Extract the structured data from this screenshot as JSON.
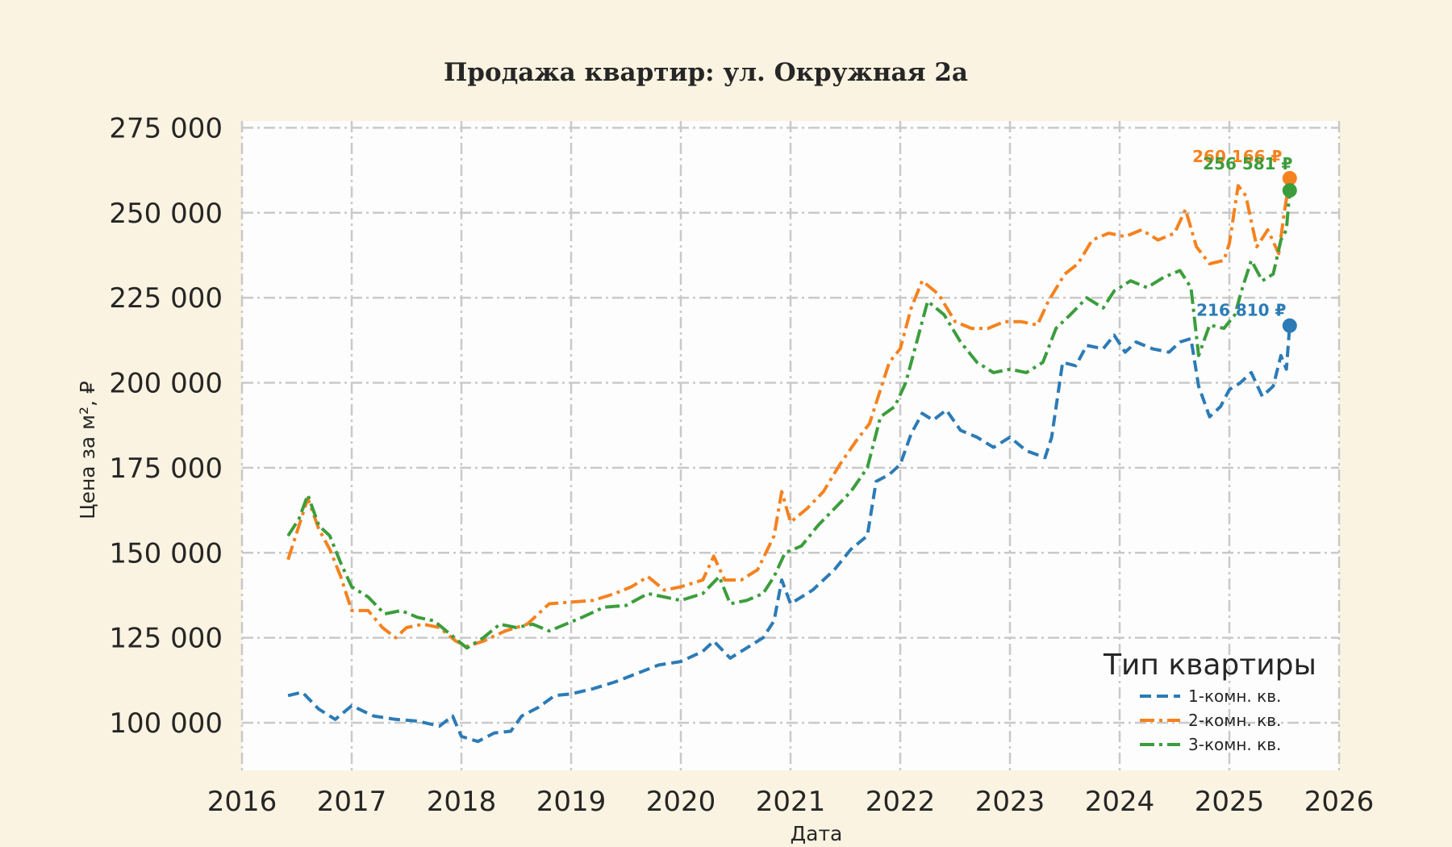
{
  "chart_data": {
    "type": "line",
    "title": "Продажа квартир: ул. Окружная 2а",
    "xlabel": "Дата",
    "ylabel": "Цена за м², ₽",
    "xlim": [
      2016.0,
      2026.0
    ],
    "ylim": [
      86000,
      277000
    ],
    "x_ticks": [
      2016,
      2017,
      2018,
      2019,
      2020,
      2021,
      2022,
      2023,
      2024,
      2025,
      2026
    ],
    "x_tick_labels": [
      "2016",
      "2017",
      "2018",
      "2019",
      "2020",
      "2021",
      "2022",
      "2023",
      "2024",
      "2025",
      "2026"
    ],
    "y_ticks": [
      100000,
      125000,
      150000,
      175000,
      200000,
      225000,
      250000,
      275000
    ],
    "y_tick_labels": [
      "100 000",
      "125 000",
      "150 000",
      "175 000",
      "200 000",
      "225 000",
      "250 000",
      "275 000"
    ],
    "grid": true,
    "legend": {
      "title": "Тип квартиры",
      "placement": "bottom-right"
    },
    "series": [
      {
        "name": "1-комн. кв.",
        "color": "#2c7bb6",
        "dash": "dashed",
        "end_label": "216 810 ₽",
        "end_point": [
          2025.55,
          216810
        ],
        "points": [
          [
            2016.42,
            108000
          ],
          [
            2016.55,
            109000
          ],
          [
            2016.7,
            104000
          ],
          [
            2016.85,
            101000
          ],
          [
            2017.0,
            105000
          ],
          [
            2017.2,
            102000
          ],
          [
            2017.4,
            101000
          ],
          [
            2017.6,
            100500
          ],
          [
            2017.8,
            99000
          ],
          [
            2017.92,
            102000
          ],
          [
            2018.0,
            96000
          ],
          [
            2018.15,
            94500
          ],
          [
            2018.3,
            97000
          ],
          [
            2018.45,
            97500
          ],
          [
            2018.55,
            102000
          ],
          [
            2018.7,
            104500
          ],
          [
            2018.85,
            108000
          ],
          [
            2019.0,
            108500
          ],
          [
            2019.2,
            110000
          ],
          [
            2019.4,
            112000
          ],
          [
            2019.6,
            114500
          ],
          [
            2019.8,
            117000
          ],
          [
            2020.0,
            118000
          ],
          [
            2020.2,
            121000
          ],
          [
            2020.3,
            124000
          ],
          [
            2020.45,
            119000
          ],
          [
            2020.6,
            122000
          ],
          [
            2020.75,
            125000
          ],
          [
            2020.85,
            130000
          ],
          [
            2020.92,
            142000
          ],
          [
            2021.0,
            135000
          ],
          [
            2021.2,
            139000
          ],
          [
            2021.4,
            145000
          ],
          [
            2021.55,
            151000
          ],
          [
            2021.7,
            155000
          ],
          [
            2021.78,
            171000
          ],
          [
            2021.9,
            173000
          ],
          [
            2022.0,
            176000
          ],
          [
            2022.1,
            185000
          ],
          [
            2022.2,
            191000
          ],
          [
            2022.3,
            189000
          ],
          [
            2022.42,
            192000
          ],
          [
            2022.55,
            186000
          ],
          [
            2022.7,
            184000
          ],
          [
            2022.85,
            181000
          ],
          [
            2023.0,
            184000
          ],
          [
            2023.15,
            180000
          ],
          [
            2023.32,
            178000
          ],
          [
            2023.38,
            184000
          ],
          [
            2023.48,
            206000
          ],
          [
            2023.6,
            205000
          ],
          [
            2023.7,
            211000
          ],
          [
            2023.85,
            210000
          ],
          [
            2023.95,
            214000
          ],
          [
            2024.05,
            209000
          ],
          [
            2024.15,
            212000
          ],
          [
            2024.3,
            210000
          ],
          [
            2024.45,
            209000
          ],
          [
            2024.55,
            212000
          ],
          [
            2024.65,
            213000
          ],
          [
            2024.72,
            199000
          ],
          [
            2024.82,
            190000
          ],
          [
            2024.92,
            193000
          ],
          [
            2025.0,
            198000
          ],
          [
            2025.1,
            200000
          ],
          [
            2025.2,
            203000
          ],
          [
            2025.3,
            196000
          ],
          [
            2025.4,
            199000
          ],
          [
            2025.47,
            208000
          ],
          [
            2025.52,
            204000
          ],
          [
            2025.55,
            216810
          ]
        ]
      },
      {
        "name": "2-комн. кв.",
        "color": "#f5821f",
        "dash": "dashdot",
        "end_label": "260 166 ₽",
        "end_point": [
          2025.55,
          260166
        ],
        "points": [
          [
            2016.42,
            148000
          ],
          [
            2016.52,
            158000
          ],
          [
            2016.6,
            166000
          ],
          [
            2016.7,
            157000
          ],
          [
            2016.8,
            151000
          ],
          [
            2016.9,
            143000
          ],
          [
            2017.0,
            133000
          ],
          [
            2017.15,
            133000
          ],
          [
            2017.28,
            128000
          ],
          [
            2017.4,
            125000
          ],
          [
            2017.5,
            128000
          ],
          [
            2017.65,
            129000
          ],
          [
            2017.8,
            128000
          ],
          [
            2017.95,
            124000
          ],
          [
            2018.05,
            122500
          ],
          [
            2018.2,
            124000
          ],
          [
            2018.4,
            127000
          ],
          [
            2018.6,
            129000
          ],
          [
            2018.8,
            135000
          ],
          [
            2019.0,
            135500
          ],
          [
            2019.2,
            136000
          ],
          [
            2019.4,
            138000
          ],
          [
            2019.55,
            140000
          ],
          [
            2019.7,
            143000
          ],
          [
            2019.85,
            139000
          ],
          [
            2020.0,
            140000
          ],
          [
            2020.2,
            142000
          ],
          [
            2020.3,
            149000
          ],
          [
            2020.4,
            142000
          ],
          [
            2020.55,
            142000
          ],
          [
            2020.7,
            145000
          ],
          [
            2020.85,
            155000
          ],
          [
            2020.92,
            168000
          ],
          [
            2021.0,
            159000
          ],
          [
            2021.15,
            163000
          ],
          [
            2021.3,
            168000
          ],
          [
            2021.45,
            176000
          ],
          [
            2021.6,
            183000
          ],
          [
            2021.72,
            188000
          ],
          [
            2021.8,
            196000
          ],
          [
            2021.9,
            206000
          ],
          [
            2022.0,
            210000
          ],
          [
            2022.1,
            222000
          ],
          [
            2022.2,
            230000
          ],
          [
            2022.35,
            226000
          ],
          [
            2022.5,
            218000
          ],
          [
            2022.65,
            216000
          ],
          [
            2022.8,
            216000
          ],
          [
            2022.95,
            218000
          ],
          [
            2023.1,
            218000
          ],
          [
            2023.25,
            217000
          ],
          [
            2023.35,
            224000
          ],
          [
            2023.5,
            232000
          ],
          [
            2023.62,
            235000
          ],
          [
            2023.75,
            242000
          ],
          [
            2023.9,
            244000
          ],
          [
            2024.05,
            243000
          ],
          [
            2024.2,
            245000
          ],
          [
            2024.35,
            242000
          ],
          [
            2024.5,
            244000
          ],
          [
            2024.6,
            251000
          ],
          [
            2024.7,
            240000
          ],
          [
            2024.82,
            235000
          ],
          [
            2024.95,
            236000
          ],
          [
            2025.0,
            241000
          ],
          [
            2025.08,
            258000
          ],
          [
            2025.15,
            255000
          ],
          [
            2025.25,
            240000
          ],
          [
            2025.35,
            245000
          ],
          [
            2025.45,
            238000
          ],
          [
            2025.5,
            250000
          ],
          [
            2025.55,
            260166
          ]
        ]
      },
      {
        "name": "3-комн. кв.",
        "color": "#3c9d3c",
        "dash": "dashdot",
        "end_label": "256 581 ₽",
        "end_point": [
          2025.55,
          256581
        ],
        "points": [
          [
            2016.42,
            155000
          ],
          [
            2016.52,
            160000
          ],
          [
            2016.6,
            167000
          ],
          [
            2016.7,
            158000
          ],
          [
            2016.8,
            155000
          ],
          [
            2016.9,
            147000
          ],
          [
            2017.0,
            140000
          ],
          [
            2017.15,
            137000
          ],
          [
            2017.3,
            132000
          ],
          [
            2017.45,
            133000
          ],
          [
            2017.6,
            131000
          ],
          [
            2017.75,
            130000
          ],
          [
            2017.9,
            126000
          ],
          [
            2018.05,
            122000
          ],
          [
            2018.2,
            125000
          ],
          [
            2018.35,
            129000
          ],
          [
            2018.5,
            128000
          ],
          [
            2018.65,
            129000
          ],
          [
            2018.8,
            127000
          ],
          [
            2018.95,
            129000
          ],
          [
            2019.1,
            131000
          ],
          [
            2019.3,
            134000
          ],
          [
            2019.5,
            134500
          ],
          [
            2019.7,
            138000
          ],
          [
            2019.85,
            137000
          ],
          [
            2020.0,
            136000
          ],
          [
            2020.2,
            138000
          ],
          [
            2020.35,
            143000
          ],
          [
            2020.45,
            135000
          ],
          [
            2020.6,
            136000
          ],
          [
            2020.75,
            138000
          ],
          [
            2020.85,
            143000
          ],
          [
            2020.95,
            150000
          ],
          [
            2021.1,
            152000
          ],
          [
            2021.25,
            158000
          ],
          [
            2021.4,
            163000
          ],
          [
            2021.55,
            168000
          ],
          [
            2021.7,
            175000
          ],
          [
            2021.82,
            190000
          ],
          [
            2021.95,
            193000
          ],
          [
            2022.05,
            200000
          ],
          [
            2022.15,
            212000
          ],
          [
            2022.25,
            224000
          ],
          [
            2022.4,
            220000
          ],
          [
            2022.55,
            212000
          ],
          [
            2022.7,
            206000
          ],
          [
            2022.85,
            203000
          ],
          [
            2023.0,
            204000
          ],
          [
            2023.15,
            203000
          ],
          [
            2023.3,
            206000
          ],
          [
            2023.42,
            216000
          ],
          [
            2023.55,
            220000
          ],
          [
            2023.7,
            225000
          ],
          [
            2023.85,
            222000
          ],
          [
            2023.95,
            227000
          ],
          [
            2024.1,
            230000
          ],
          [
            2024.25,
            228000
          ],
          [
            2024.4,
            231000
          ],
          [
            2024.55,
            233000
          ],
          [
            2024.65,
            228000
          ],
          [
            2024.72,
            208000
          ],
          [
            2024.82,
            217000
          ],
          [
            2024.95,
            216000
          ],
          [
            2025.05,
            220000
          ],
          [
            2025.12,
            228000
          ],
          [
            2025.2,
            236000
          ],
          [
            2025.3,
            230000
          ],
          [
            2025.4,
            232000
          ],
          [
            2025.47,
            242000
          ],
          [
            2025.52,
            245000
          ],
          [
            2025.55,
            256581
          ]
        ]
      }
    ]
  }
}
